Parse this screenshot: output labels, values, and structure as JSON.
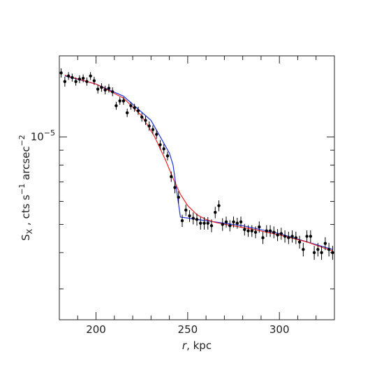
{
  "chart_data": {
    "type": "scatter",
    "title": "",
    "xlabel": "r, kpc",
    "ylabel": "S_X , cts s^-1 arcsec^-2",
    "xlabel_parts": {
      "var": "r",
      "rest": ", kpc"
    },
    "ylabel_parts": {
      "S": "S",
      "sub": "X",
      "mid": " , cts s",
      "sup1": "−1",
      "mid2": " arcsec",
      "sup2": "−2"
    },
    "x_range": [
      180,
      330
    ],
    "y_range": [
      2.35e-06,
      1.9e-05
    ],
    "y_scale": "log",
    "grid": false,
    "legend": "none",
    "x_ticks": [
      200,
      250,
      300
    ],
    "x_tick_labels": [
      "200",
      "250",
      "300"
    ],
    "y_tick_labels": [
      {
        "value": 1e-05,
        "mantissa": "10",
        "exp": "−5"
      }
    ],
    "points": {
      "name": "",
      "color": "#000000",
      "x": [
        181,
        183,
        185,
        187,
        189,
        191,
        193,
        195,
        197,
        199,
        201,
        203,
        205,
        207,
        209,
        211,
        213,
        215,
        217,
        219,
        221,
        223,
        225,
        227,
        229,
        231,
        233,
        235,
        237,
        239,
        241,
        243,
        245,
        247,
        249,
        251,
        253,
        255,
        257,
        259,
        261,
        263,
        265,
        267,
        269,
        271,
        273,
        275,
        277,
        279,
        281,
        283,
        285,
        287,
        289,
        291,
        293,
        295,
        297,
        299,
        301,
        303,
        305,
        307,
        309,
        311,
        313,
        315,
        317,
        319,
        321,
        323,
        325,
        327,
        329
      ],
      "y": [
        1.66e-05,
        1.55e-05,
        1.62e-05,
        1.6e-05,
        1.55e-05,
        1.58e-05,
        1.59e-05,
        1.55e-05,
        1.62e-05,
        1.56e-05,
        1.46e-05,
        1.48e-05,
        1.45e-05,
        1.47e-05,
        1.43e-05,
        1.28e-05,
        1.33e-05,
        1.33e-05,
        1.21e-05,
        1.28e-05,
        1.26e-05,
        1.23e-05,
        1.17e-05,
        1.14e-05,
        1.09e-05,
        1.06e-05,
        1.02e-05,
        9.4e-06,
        9.1e-06,
        8.6e-06,
        7.3e-06,
        6.7e-06,
        6.2e-06,
        5.15e-06,
        5.6e-06,
        5.35e-06,
        5.25e-06,
        5.2e-06,
        5.05e-06,
        5.05e-06,
        5.05e-06,
        4.95e-06,
        5.5e-06,
        5.8e-06,
        5e-06,
        5.1e-06,
        4.95e-06,
        5.1e-06,
        5.05e-06,
        5.1e-06,
        4.8e-06,
        4.75e-06,
        4.75e-06,
        4.7e-06,
        4.9e-06,
        4.5e-06,
        4.75e-06,
        4.75e-06,
        4.7e-06,
        4.6e-06,
        4.65e-06,
        4.55e-06,
        4.5e-06,
        4.55e-06,
        4.5e-06,
        4.35e-06,
        4.1e-06,
        4.55e-06,
        4.55e-06,
        4e-06,
        4.1e-06,
        4e-06,
        4.3e-06,
        4.1e-06,
        4e-06
      ],
      "yerr": [
        6e-07,
        6e-07,
        5e-07,
        5e-07,
        5e-07,
        5e-07,
        5e-07,
        5e-07,
        5e-07,
        5e-07,
        5e-07,
        5e-07,
        5e-07,
        5e-07,
        5e-07,
        4e-07,
        4e-07,
        4e-07,
        4e-07,
        4e-07,
        4e-07,
        4e-07,
        4e-07,
        4e-07,
        4e-07,
        3.5e-07,
        3.5e-07,
        3.5e-07,
        3.5e-07,
        3e-07,
        3e-07,
        3e-07,
        3e-07,
        2.5e-07,
        2.5e-07,
        2.5e-07,
        2.5e-07,
        2.5e-07,
        2.5e-07,
        2.5e-07,
        2.5e-07,
        2.5e-07,
        2.5e-07,
        2.5e-07,
        2.5e-07,
        2.2e-07,
        2.2e-07,
        2.2e-07,
        2.2e-07,
        2.2e-07,
        2.2e-07,
        2.2e-07,
        2.2e-07,
        2.2e-07,
        2.2e-07,
        2.2e-07,
        2.2e-07,
        2.2e-07,
        2.2e-07,
        2.2e-07,
        2.2e-07,
        2.2e-07,
        2.2e-07,
        2.2e-07,
        2.2e-07,
        2.2e-07,
        2.2e-07,
        2.2e-07,
        2.2e-07,
        2.2e-07,
        2.2e-07,
        2.2e-07,
        2.2e-07,
        2.2e-07,
        2.2e-07
      ]
    },
    "curves": [
      {
        "name": "",
        "color": "#2233dd",
        "x": [
          183,
          200,
          215,
          230,
          240,
          242,
          246,
          260,
          280,
          300,
          329
        ],
        "y": [
          1.62e-05,
          1.52e-05,
          1.38e-05,
          1.14e-05,
          8.8e-06,
          8e-06,
          5.3e-06,
          5.15e-06,
          4.95e-06,
          4.65e-06,
          4.1e-06
        ]
      },
      {
        "name": "",
        "color": "#ee2222",
        "x": [
          183,
          200,
          215,
          225,
          232,
          238,
          242,
          246,
          250,
          255,
          260,
          265,
          272,
          285,
          300,
          315,
          329
        ],
        "y": [
          1.63e-05,
          1.52e-05,
          1.36e-05,
          1.18e-05,
          1e-05,
          8.3e-06,
          7.2e-06,
          6.35e-06,
          5.8e-06,
          5.4e-06,
          5.2e-06,
          5.08e-06,
          4.98e-06,
          4.82e-06,
          4.6e-06,
          4.35e-06,
          4.05e-06
        ]
      }
    ]
  }
}
